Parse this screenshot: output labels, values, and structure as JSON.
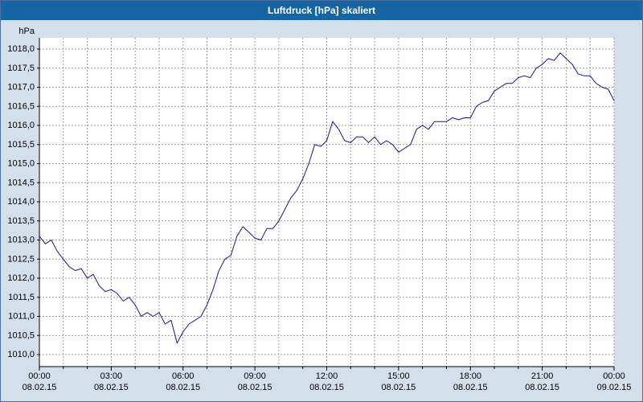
{
  "window": {
    "title": "Luftdruck [hPa] skaliert"
  },
  "colors": {
    "titlebar": "#1565a5",
    "background": "#d3dfeb",
    "plot_background": "#ffffff",
    "grid": "#9b9b9b",
    "axis": "#000000",
    "line": "#141496"
  },
  "chart_data": {
    "type": "line",
    "title": "Luftdruck [hPa] skaliert",
    "xlabel": "",
    "ylabel": "hPa",
    "ylim": [
      1010.0,
      1018.0
    ],
    "xlim_hours": [
      0,
      24
    ],
    "y_tick_step": 0.5,
    "grid": "dashed",
    "grid_dash": "2,2",
    "legend": "none",
    "y_tick_values": [
      1018.0,
      1017.5,
      1017.0,
      1016.5,
      1016.0,
      1015.5,
      1015.0,
      1014.5,
      1014.0,
      1013.5,
      1013.0,
      1012.5,
      1012.0,
      1011.5,
      1011.0,
      1010.5,
      1010.0
    ],
    "y_tick_labels": [
      "1018,0",
      "1017,5",
      "1017,0",
      "1016,5",
      "1016,0",
      "1015,5",
      "1015,0",
      "1014,5",
      "1014,0",
      "1013,5",
      "1013,0",
      "1012,5",
      "1012,0",
      "1011,5",
      "1011,0",
      "1010,5",
      "1010,0"
    ],
    "x_ticks": [
      {
        "hour": 0,
        "time": "00:00",
        "date": "08.02.15"
      },
      {
        "hour": 3,
        "time": "03:00",
        "date": "08.02.15"
      },
      {
        "hour": 6,
        "time": "06:00",
        "date": "08.02.15"
      },
      {
        "hour": 9,
        "time": "09:00",
        "date": "08.02.15"
      },
      {
        "hour": 12,
        "time": "12:00",
        "date": "08.02.15"
      },
      {
        "hour": 15,
        "time": "15:00",
        "date": "08.02.15"
      },
      {
        "hour": 18,
        "time": "18:00",
        "date": "08.02.15"
      },
      {
        "hour": 21,
        "time": "21:00",
        "date": "08.02.15"
      },
      {
        "hour": 24,
        "time": "00:00",
        "date": "09.02.15"
      }
    ],
    "series": [
      {
        "name": "Luftdruck",
        "color": "#141496",
        "start_hour": 0,
        "interval_hours": 0.25,
        "values": [
          1013.1,
          1012.9,
          1013.0,
          1012.7,
          1012.5,
          1012.3,
          1012.2,
          1012.25,
          1012.0,
          1012.1,
          1011.8,
          1011.65,
          1011.7,
          1011.6,
          1011.4,
          1011.5,
          1011.3,
          1011.0,
          1011.1,
          1011.0,
          1011.1,
          1010.8,
          1010.9,
          1010.3,
          1010.6,
          1010.8,
          1010.9,
          1011.0,
          1011.3,
          1011.7,
          1012.2,
          1012.5,
          1012.6,
          1013.1,
          1013.35,
          1013.2,
          1013.05,
          1013.0,
          1013.3,
          1013.3,
          1013.5,
          1013.8,
          1014.1,
          1014.3,
          1014.6,
          1015.0,
          1015.5,
          1015.45,
          1015.6,
          1016.1,
          1015.9,
          1015.6,
          1015.55,
          1015.7,
          1015.7,
          1015.55,
          1015.7,
          1015.5,
          1015.6,
          1015.5,
          1015.3,
          1015.4,
          1015.5,
          1015.9,
          1016.0,
          1015.9,
          1016.1,
          1016.1,
          1016.1,
          1016.2,
          1016.15,
          1016.2,
          1016.2,
          1016.5,
          1016.6,
          1016.65,
          1016.9,
          1017.0,
          1017.1,
          1017.1,
          1017.25,
          1017.3,
          1017.25,
          1017.5,
          1017.6,
          1017.75,
          1017.7,
          1017.9,
          1017.75,
          1017.6,
          1017.35,
          1017.3,
          1017.3,
          1017.1,
          1017.0,
          1016.95,
          1016.65
        ]
      }
    ]
  }
}
